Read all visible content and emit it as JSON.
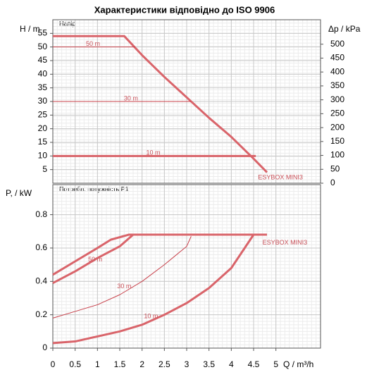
{
  "chart_data": [
    {
      "type": "line",
      "title": "Характеристики відповідно до ISO 9906",
      "subtitle": "Напір",
      "y_label": "H / m",
      "y2_label": "Δp / kPa",
      "xlim": [
        0,
        6
      ],
      "ylim": [
        0,
        60
      ],
      "yticks": [
        5,
        10,
        15,
        20,
        25,
        30,
        35,
        40,
        45,
        50,
        55
      ],
      "y2lim": [
        0,
        588
      ],
      "y2ticks": [
        0,
        50,
        100,
        150,
        200,
        250,
        300,
        350,
        400,
        450,
        500
      ],
      "grid": true,
      "series": [
        {
          "name": "ESYBOX MINI3",
          "color": "#d9646a",
          "width": 3,
          "x": [
            0,
            1.6,
            2,
            2.5,
            3,
            3.5,
            4,
            4.5,
            4.8
          ],
          "values": [
            54,
            54,
            47,
            39,
            31.5,
            24,
            17,
            9,
            4
          ]
        },
        {
          "name": "50 m",
          "color": "#c8404a",
          "width": 1,
          "x": [
            0,
            1.85
          ],
          "values": [
            50,
            50
          ]
        },
        {
          "name": "30 m",
          "color": "#c8404a",
          "width": 1,
          "x": [
            0,
            3.1
          ],
          "values": [
            30,
            30
          ]
        },
        {
          "name": "10 m",
          "color": "#d9646a",
          "width": 3,
          "x": [
            0,
            4.55
          ],
          "values": [
            10,
            10
          ]
        }
      ]
    },
    {
      "type": "line",
      "subtitle": "Потребл. потужність P1",
      "y_label": "P, / kW",
      "x_label": "Q / m³/h",
      "xlim": [
        0,
        6
      ],
      "xticks": [
        0,
        0.5,
        1,
        1.5,
        2,
        2.5,
        3,
        3.5,
        4,
        4.5,
        5
      ],
      "ylim": [
        0,
        0.98
      ],
      "yticks": [
        0,
        0.2,
        0.4,
        0.6,
        0.8
      ],
      "grid": true,
      "series": [
        {
          "name": "ESYBOX MINI3",
          "color": "#d9646a",
          "width": 3,
          "x": [
            0,
            0.5,
            1,
            1.3,
            1.7,
            4.8
          ],
          "values": [
            0.44,
            0.52,
            0.6,
            0.65,
            0.68,
            0.68
          ]
        },
        {
          "name": "50 m",
          "color": "#d9646a",
          "width": 3,
          "x": [
            0,
            0.5,
            1,
            1.5,
            1.8
          ],
          "values": [
            0.39,
            0.46,
            0.54,
            0.61,
            0.68
          ]
        },
        {
          "name": "30 m",
          "color": "#c8404a",
          "width": 1,
          "x": [
            0,
            0.5,
            1,
            1.5,
            2,
            2.5,
            3,
            3.1
          ],
          "values": [
            0.18,
            0.22,
            0.26,
            0.32,
            0.4,
            0.5,
            0.61,
            0.67
          ]
        },
        {
          "name": "10 m",
          "color": "#d9646a",
          "width": 3,
          "x": [
            0,
            0.5,
            1,
            1.5,
            2,
            2.5,
            3,
            3.5,
            4,
            4.5
          ],
          "values": [
            0.03,
            0.04,
            0.07,
            0.1,
            0.14,
            0.2,
            0.27,
            0.36,
            0.48,
            0.68
          ]
        }
      ]
    }
  ]
}
